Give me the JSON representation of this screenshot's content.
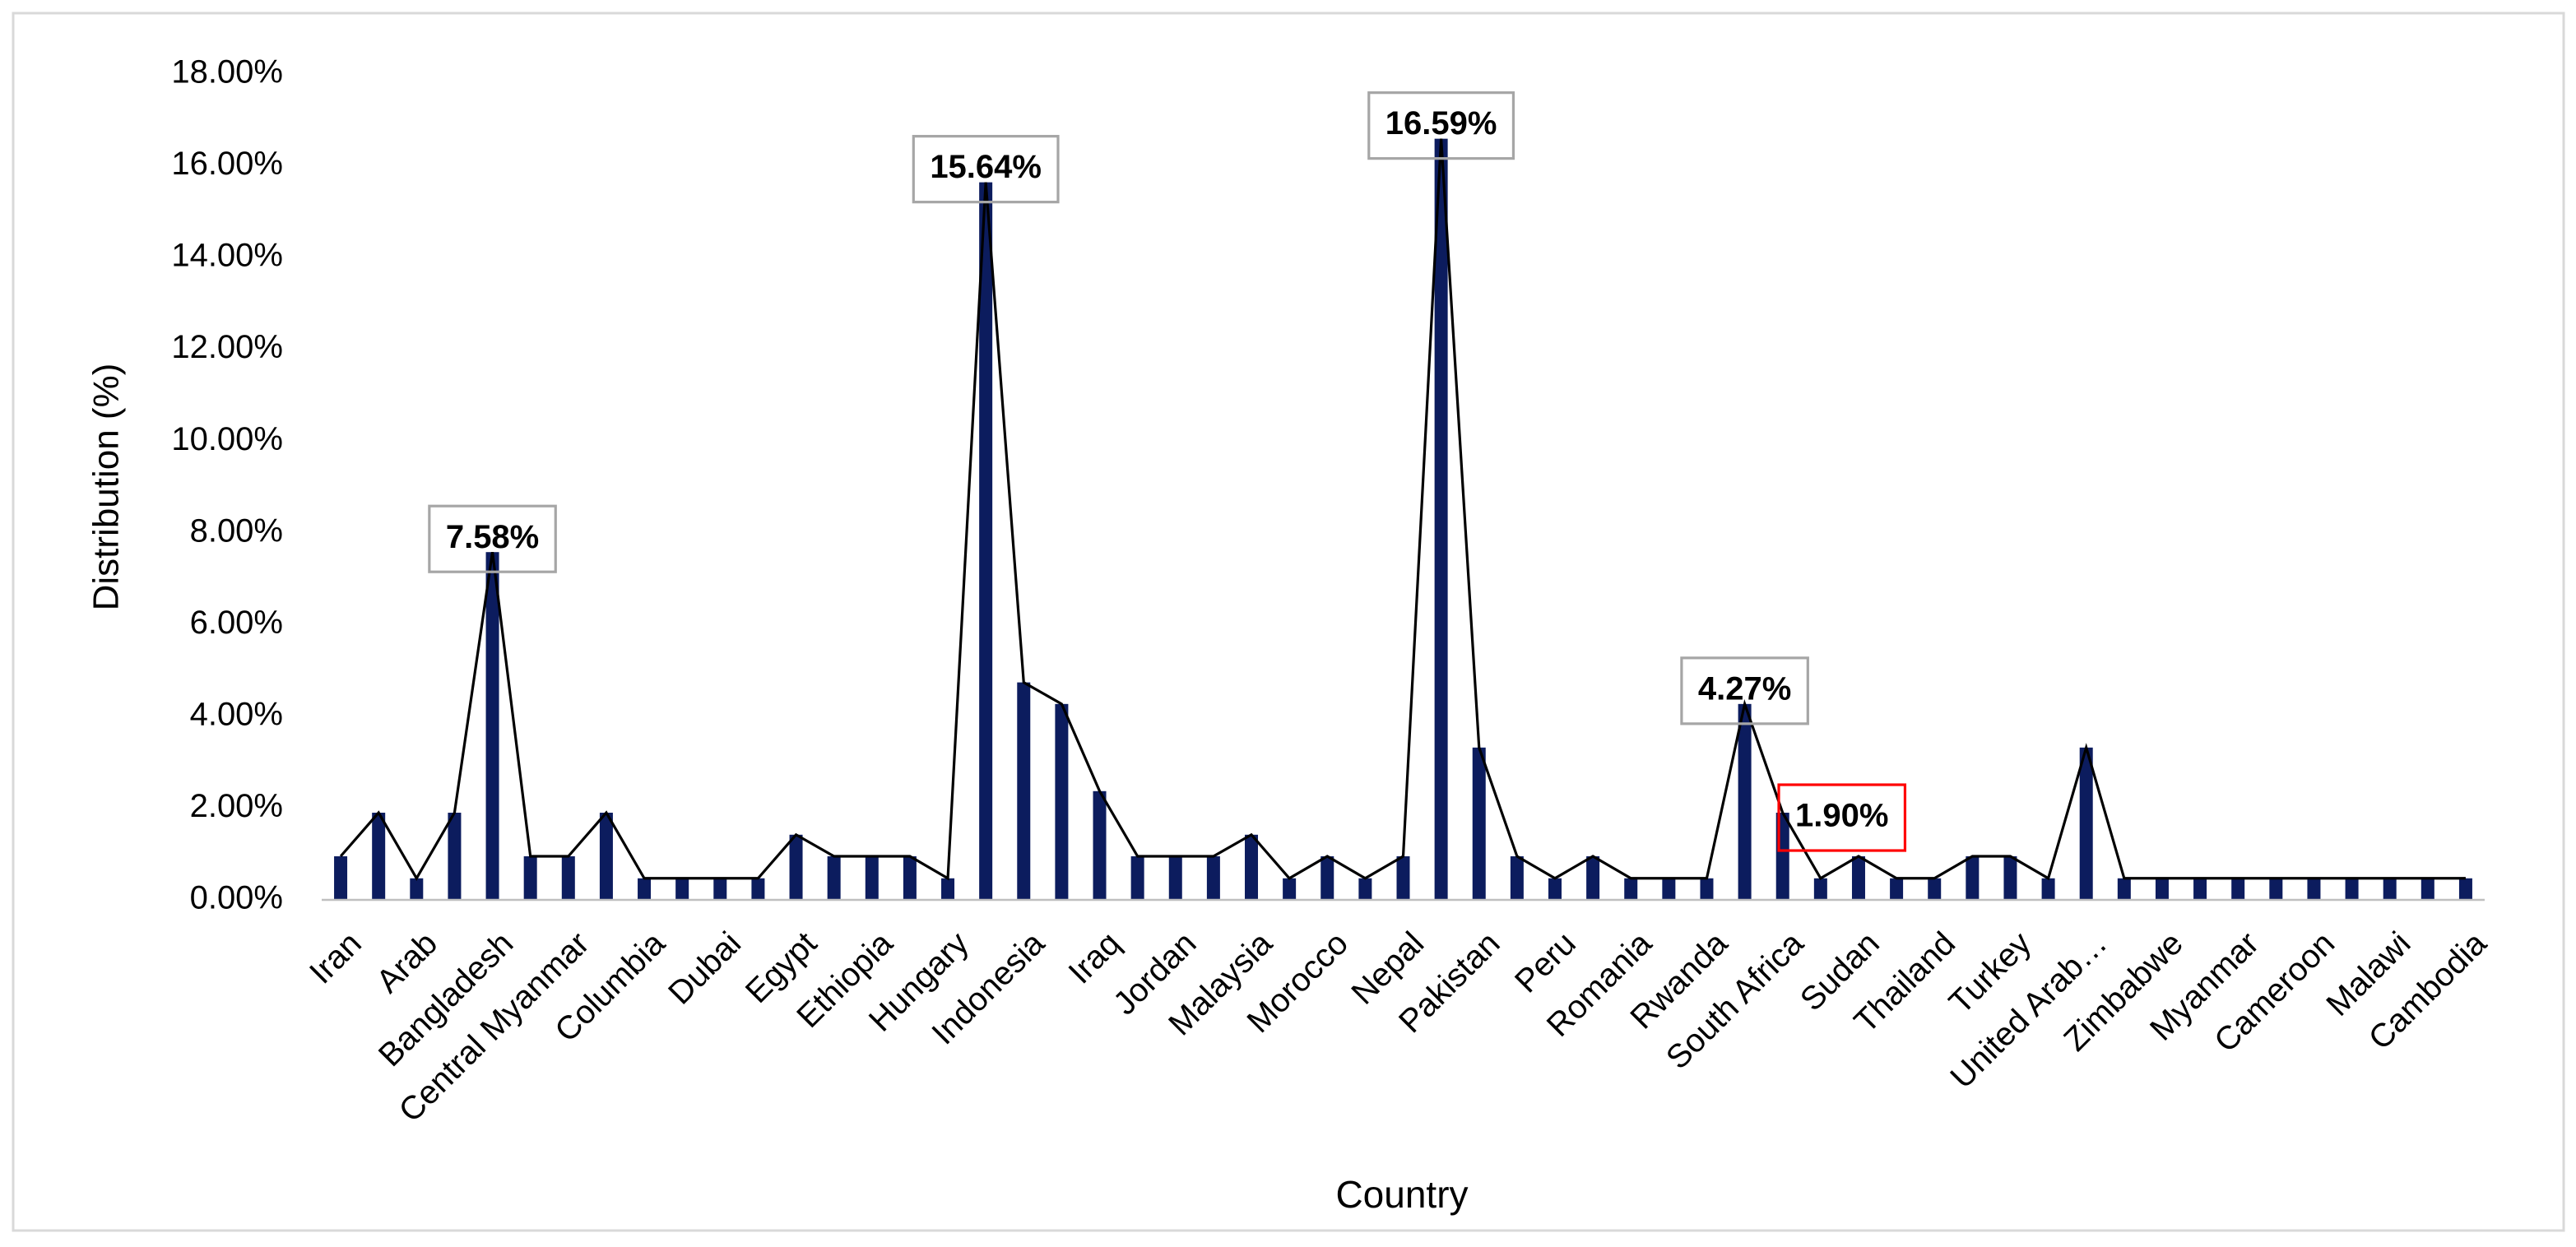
{
  "chart_data": {
    "type": "bar-line",
    "x_label": "Country",
    "y_label": "Distribution (%)",
    "categories": [
      "Iran",
      null,
      "Arab",
      null,
      "Bangladesh",
      null,
      "Central Myanmar",
      null,
      "Columbia",
      null,
      "Dubai",
      null,
      "Egypt",
      null,
      "Ethiopia",
      null,
      "Hungary",
      null,
      "Indonesia",
      null,
      "Iraq",
      null,
      "Jordan",
      null,
      "Malaysia",
      null,
      "Morocco",
      null,
      "Nepal",
      null,
      "Pakistan",
      null,
      "Peru",
      null,
      "Romania",
      null,
      "Rwanda",
      null,
      "South Africa",
      null,
      "Sudan",
      null,
      "Thailand",
      null,
      "Turkey",
      null,
      "United Arab…",
      null,
      "Zimbabwe",
      null,
      "Myanmar",
      null,
      "Cameroon",
      null,
      "Malawi",
      null,
      "Cambodia"
    ],
    "values": [
      0.95,
      1.9,
      0.47,
      1.9,
      7.58,
      0.95,
      0.95,
      1.9,
      0.47,
      0.47,
      0.47,
      0.47,
      1.42,
      0.95,
      0.95,
      0.95,
      0.47,
      15.64,
      4.74,
      4.27,
      2.37,
      0.95,
      0.95,
      0.95,
      1.42,
      0.47,
      0.95,
      0.47,
      0.95,
      16.59,
      3.32,
      0.95,
      0.47,
      0.95,
      0.47,
      0.47,
      0.47,
      4.27,
      1.9,
      0.47,
      0.95,
      0.47,
      0.47,
      0.95,
      0.95,
      0.47,
      3.32,
      0.47,
      0.47,
      0.47,
      0.47,
      0.47,
      0.47,
      0.47,
      0.47,
      0.47,
      0.47
    ],
    "value_labels": [
      null,
      null,
      null,
      null,
      "7.58%",
      null,
      null,
      null,
      null,
      null,
      null,
      null,
      null,
      null,
      null,
      null,
      null,
      "15.64%",
      null,
      null,
      null,
      null,
      null,
      null,
      null,
      null,
      null,
      null,
      null,
      "16.59%",
      null,
      null,
      null,
      null,
      null,
      null,
      null,
      "4.27%",
      "1.90%",
      null,
      null,
      null,
      null,
      null,
      null,
      null,
      null,
      null,
      null,
      null,
      null,
      null,
      null,
      null,
      null,
      null,
      null
    ],
    "label_box_colors": [
      null,
      null,
      null,
      null,
      "#a6a6a6",
      null,
      null,
      null,
      null,
      null,
      null,
      null,
      null,
      null,
      null,
      null,
      null,
      "#a6a6a6",
      null,
      null,
      null,
      null,
      null,
      null,
      null,
      null,
      null,
      null,
      null,
      "#a6a6a6",
      null,
      null,
      null,
      null,
      null,
      null,
      null,
      "#a6a6a6",
      "#ff0000",
      null,
      null,
      null,
      null,
      null,
      null,
      null,
      null,
      null,
      null,
      null,
      null,
      null,
      null,
      null,
      null,
      null,
      null
    ],
    "color": "#0c1c5e",
    "line_color": "#000000",
    "ylim": [
      0,
      18
    ],
    "yticks": [
      {
        "value": 0,
        "label": "0.00%"
      },
      {
        "value": 2,
        "label": "2.00%"
      },
      {
        "value": 4,
        "label": "4.00%"
      },
      {
        "value": 6,
        "label": "6.00%"
      },
      {
        "value": 8,
        "label": "8.00%"
      },
      {
        "value": 10,
        "label": "10.00%"
      },
      {
        "value": 12,
        "label": "12.00%"
      },
      {
        "value": 14,
        "label": "14.00%"
      },
      {
        "value": 16,
        "label": "16.00%"
      },
      {
        "value": 18,
        "label": "18.00%"
      }
    ],
    "grid": false
  }
}
